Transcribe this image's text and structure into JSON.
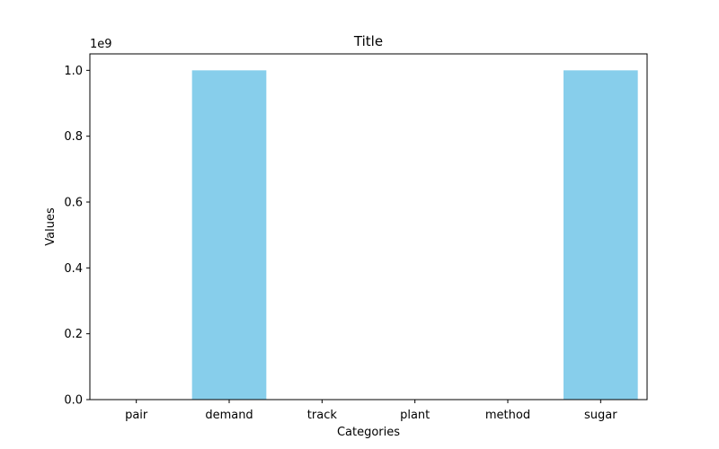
{
  "chart_data": {
    "type": "bar",
    "title": "Title",
    "xlabel": "Categories",
    "ylabel": "Values",
    "categories": [
      "pair",
      "demand",
      "track",
      "plant",
      "method",
      "sugar"
    ],
    "values": [
      0,
      1000000000,
      0,
      0,
      0,
      1000000000
    ],
    "ylim": [
      0,
      1050000000
    ],
    "y_offset_label": "1e9",
    "y_ticks": [
      {
        "value": 0,
        "label": "0.0"
      },
      {
        "value": 200000000,
        "label": "0.2"
      },
      {
        "value": 400000000,
        "label": "0.4"
      },
      {
        "value": 600000000,
        "label": "0.6"
      },
      {
        "value": 800000000,
        "label": "0.8"
      },
      {
        "value": 1000000000,
        "label": "1.0"
      }
    ],
    "grid": false,
    "bar_color": "#87ceeb"
  }
}
